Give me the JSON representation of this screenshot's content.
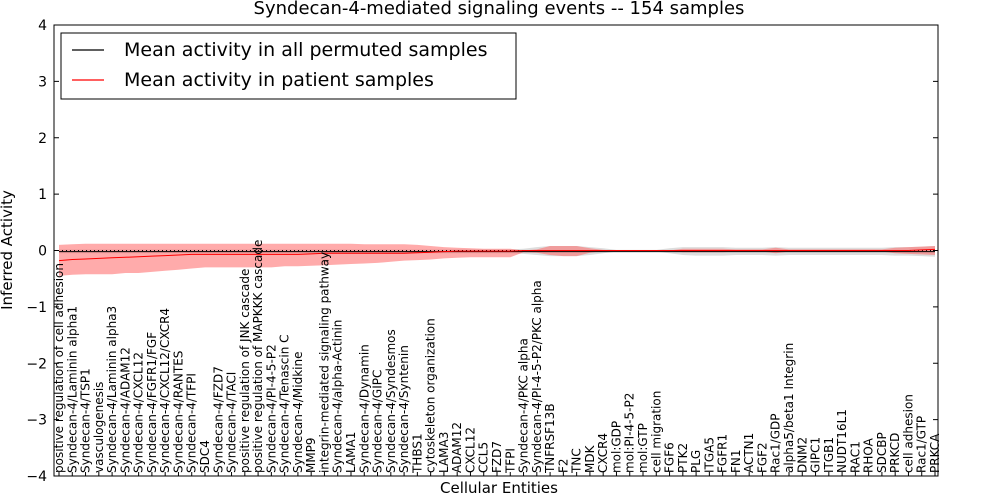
{
  "chart_data": {
    "type": "line",
    "title": "Syndecan-4-mediated signaling events -- 154 samples",
    "xlabel": "Cellular Entities",
    "ylabel": "Inferred Activity",
    "ylim": [
      -4,
      4
    ],
    "yticks": [
      -4,
      -3,
      -2,
      -1,
      0,
      1,
      2,
      3,
      4
    ],
    "legend_position": "top-left",
    "categories": [
      "positive regulation of cell adhesion",
      "Syndecan-4/Laminin alpha1",
      "Syndecan-4/TSP1",
      "vasculogenesis",
      "Syndecan-4/Laminin alpha3",
      "Syndecan-4/ADAM12",
      "Syndecan-4/CXCL12",
      "Syndecan-4/FGFR1/FGF",
      "Syndecan-4/CXCL12/CXCR4",
      "Syndecan-4/RANTES",
      "Syndecan-4/TFPI",
      "SDC4",
      "Syndecan-4/FZD7",
      "Syndecan-4/TACI",
      "positive regulation of JNK cascade",
      "positive regulation of MAPKKK cascade",
      "Syndecan-4/PI-4-5-P2",
      "Syndecan-4/Tenascin C",
      "Syndecan-4/Midkine",
      "MMP9",
      "integrin-mediated signaling pathway",
      "Syndecan-4/alpha-Actinin",
      "LAMA1",
      "Syndecan-4/Dynamin",
      "Syndecan-4/GIPC",
      "Syndecan-4/Syndesmos",
      "Syndecan-4/Syntenin",
      "THBS1",
      "cytoskeleton organization",
      "LAMA3",
      "ADAM12",
      "CXCL12",
      "CCL5",
      "FZD7",
      "TFPI",
      "Syndecan-4/PKC alpha",
      "Syndecan-4/PI-4-5-P2/PKC alpha",
      "TNFRSF13B",
      "F2",
      "TNC",
      "MDK",
      "CXCR4",
      "mol:GDP",
      "mol:PI-4-5-P2",
      "mol:GTP",
      "cell migration",
      "FGF6",
      "PTK2",
      "PLG",
      "ITGA5",
      "FGFR1",
      "FN1",
      "ACTN1",
      "FGF2",
      "Rac1/GDP",
      "alpha5/beta1 Integrin",
      "DNM2",
      "GIPC1",
      "ITGB1",
      "NUDT16L1",
      "RAC1",
      "RHOA",
      "SDCBP",
      "PRKCD",
      "cell adhesion",
      "Rac1/GTP",
      "PRKCA"
    ],
    "series": [
      {
        "name": "Mean activity in all permuted samples",
        "color": "#000000",
        "values": [
          -0.02,
          -0.02,
          -0.02,
          -0.02,
          -0.02,
          -0.02,
          -0.02,
          -0.02,
          -0.02,
          -0.02,
          -0.02,
          -0.02,
          -0.02,
          -0.02,
          -0.02,
          -0.02,
          -0.02,
          -0.02,
          -0.02,
          -0.02,
          -0.02,
          -0.02,
          -0.02,
          -0.02,
          -0.02,
          -0.02,
          -0.02,
          -0.02,
          -0.02,
          -0.02,
          -0.02,
          -0.02,
          -0.02,
          -0.02,
          -0.02,
          -0.02,
          -0.02,
          -0.02,
          -0.02,
          -0.02,
          -0.02,
          -0.02,
          -0.02,
          -0.02,
          -0.02,
          -0.02,
          -0.02,
          -0.02,
          -0.02,
          -0.02,
          -0.02,
          -0.02,
          -0.02,
          -0.02,
          -0.02,
          -0.02,
          -0.02,
          -0.02,
          -0.02,
          -0.02,
          -0.02,
          -0.02,
          -0.02,
          -0.02,
          -0.02,
          -0.02,
          -0.02
        ]
      },
      {
        "name": "Mean activity in patient samples",
        "color": "#ff0000",
        "values": [
          -0.18,
          -0.16,
          -0.15,
          -0.14,
          -0.13,
          -0.12,
          -0.11,
          -0.1,
          -0.09,
          -0.08,
          -0.07,
          -0.07,
          -0.07,
          -0.07,
          -0.07,
          -0.07,
          -0.07,
          -0.07,
          -0.07,
          -0.06,
          -0.05,
          -0.05,
          -0.05,
          -0.05,
          -0.05,
          -0.05,
          -0.05,
          -0.04,
          -0.03,
          -0.02,
          -0.01,
          -0.01,
          -0.01,
          -0.01,
          -0.01,
          0.0,
          0.0,
          0.0,
          0.0,
          0.0,
          0.0,
          0.0,
          0.0,
          0.0,
          0.0,
          0.0,
          0.0,
          0.0,
          0.0,
          0.0,
          0.0,
          0.0,
          0.0,
          0.0,
          0.0,
          0.0,
          0.0,
          0.0,
          0.0,
          0.0,
          0.0,
          0.0,
          0.0,
          0.0,
          0.0,
          0.01,
          0.02
        ]
      }
    ],
    "patient_band": {
      "upper": [
        0.1,
        0.11,
        0.12,
        0.12,
        0.12,
        0.12,
        0.12,
        0.12,
        0.12,
        0.12,
        0.12,
        0.12,
        0.12,
        0.12,
        0.12,
        0.12,
        0.12,
        0.12,
        0.12,
        0.12,
        0.12,
        0.12,
        0.12,
        0.11,
        0.11,
        0.11,
        0.11,
        0.1,
        0.08,
        0.06,
        0.05,
        0.04,
        0.03,
        0.03,
        0.03,
        0.0,
        0.02,
        0.08,
        0.08,
        0.08,
        0.04,
        0.01,
        0.0,
        0.0,
        0.0,
        0.0,
        0.0,
        0.03,
        0.03,
        0.03,
        0.03,
        0.02,
        0.02,
        0.02,
        0.05,
        0.02,
        0.02,
        0.02,
        0.02,
        0.02,
        0.02,
        0.02,
        0.02,
        0.05,
        0.06,
        0.07,
        0.08
      ],
      "lower": [
        -0.45,
        -0.43,
        -0.42,
        -0.42,
        -0.42,
        -0.4,
        -0.4,
        -0.38,
        -0.36,
        -0.34,
        -0.32,
        -0.3,
        -0.3,
        -0.3,
        -0.3,
        -0.3,
        -0.3,
        -0.28,
        -0.28,
        -0.27,
        -0.26,
        -0.25,
        -0.24,
        -0.23,
        -0.22,
        -0.2,
        -0.18,
        -0.17,
        -0.16,
        -0.14,
        -0.13,
        -0.12,
        -0.12,
        -0.12,
        -0.12,
        -0.03,
        -0.04,
        -0.08,
        -0.1,
        -0.1,
        -0.04,
        -0.01,
        0.0,
        0.0,
        0.0,
        0.0,
        0.0,
        -0.03,
        -0.03,
        -0.03,
        -0.03,
        -0.02,
        -0.02,
        -0.02,
        -0.05,
        -0.02,
        -0.02,
        -0.02,
        -0.02,
        -0.02,
        -0.02,
        -0.02,
        -0.02,
        -0.05,
        -0.06,
        -0.07,
        -0.08
      ]
    },
    "permuted_band": {
      "upper": [
        0.02,
        0.02,
        0.02,
        0.02,
        0.02,
        0.02,
        0.02,
        0.02,
        0.02,
        0.02,
        0.02,
        0.02,
        0.02,
        0.02,
        0.02,
        0.02,
        0.02,
        0.02,
        0.02,
        0.02,
        0.02,
        0.02,
        0.02,
        0.02,
        0.02,
        0.02,
        0.02,
        0.02,
        0.02,
        0.02,
        0.02,
        0.02,
        0.02,
        0.02,
        0.02,
        0.03,
        0.06,
        0.08,
        0.08,
        0.08,
        0.06,
        0.04,
        0.01,
        0.01,
        0.01,
        0.01,
        0.04,
        0.06,
        0.06,
        0.06,
        0.06,
        0.05,
        0.05,
        0.05,
        0.06,
        0.05,
        0.05,
        0.05,
        0.05,
        0.05,
        0.05,
        0.05,
        0.05,
        0.06,
        0.06,
        0.07,
        0.08
      ],
      "lower": [
        -0.05,
        -0.05,
        -0.05,
        -0.05,
        -0.05,
        -0.05,
        -0.05,
        -0.05,
        -0.05,
        -0.05,
        -0.05,
        -0.05,
        -0.05,
        -0.05,
        -0.05,
        -0.05,
        -0.05,
        -0.05,
        -0.05,
        -0.05,
        -0.05,
        -0.05,
        -0.05,
        -0.05,
        -0.05,
        -0.05,
        -0.05,
        -0.05,
        -0.05,
        -0.05,
        -0.05,
        -0.05,
        -0.05,
        -0.05,
        -0.05,
        -0.06,
        -0.08,
        -0.1,
        -0.1,
        -0.1,
        -0.08,
        -0.05,
        -0.02,
        -0.02,
        -0.02,
        -0.02,
        -0.05,
        -0.08,
        -0.09,
        -0.09,
        -0.09,
        -0.08,
        -0.08,
        -0.08,
        -0.09,
        -0.08,
        -0.08,
        -0.08,
        -0.08,
        -0.08,
        -0.08,
        -0.08,
        -0.08,
        -0.09,
        -0.09,
        -0.1,
        -0.11
      ]
    },
    "band_colors": {
      "patient": "#ff6666",
      "permuted": "#bbbbbb"
    }
  }
}
